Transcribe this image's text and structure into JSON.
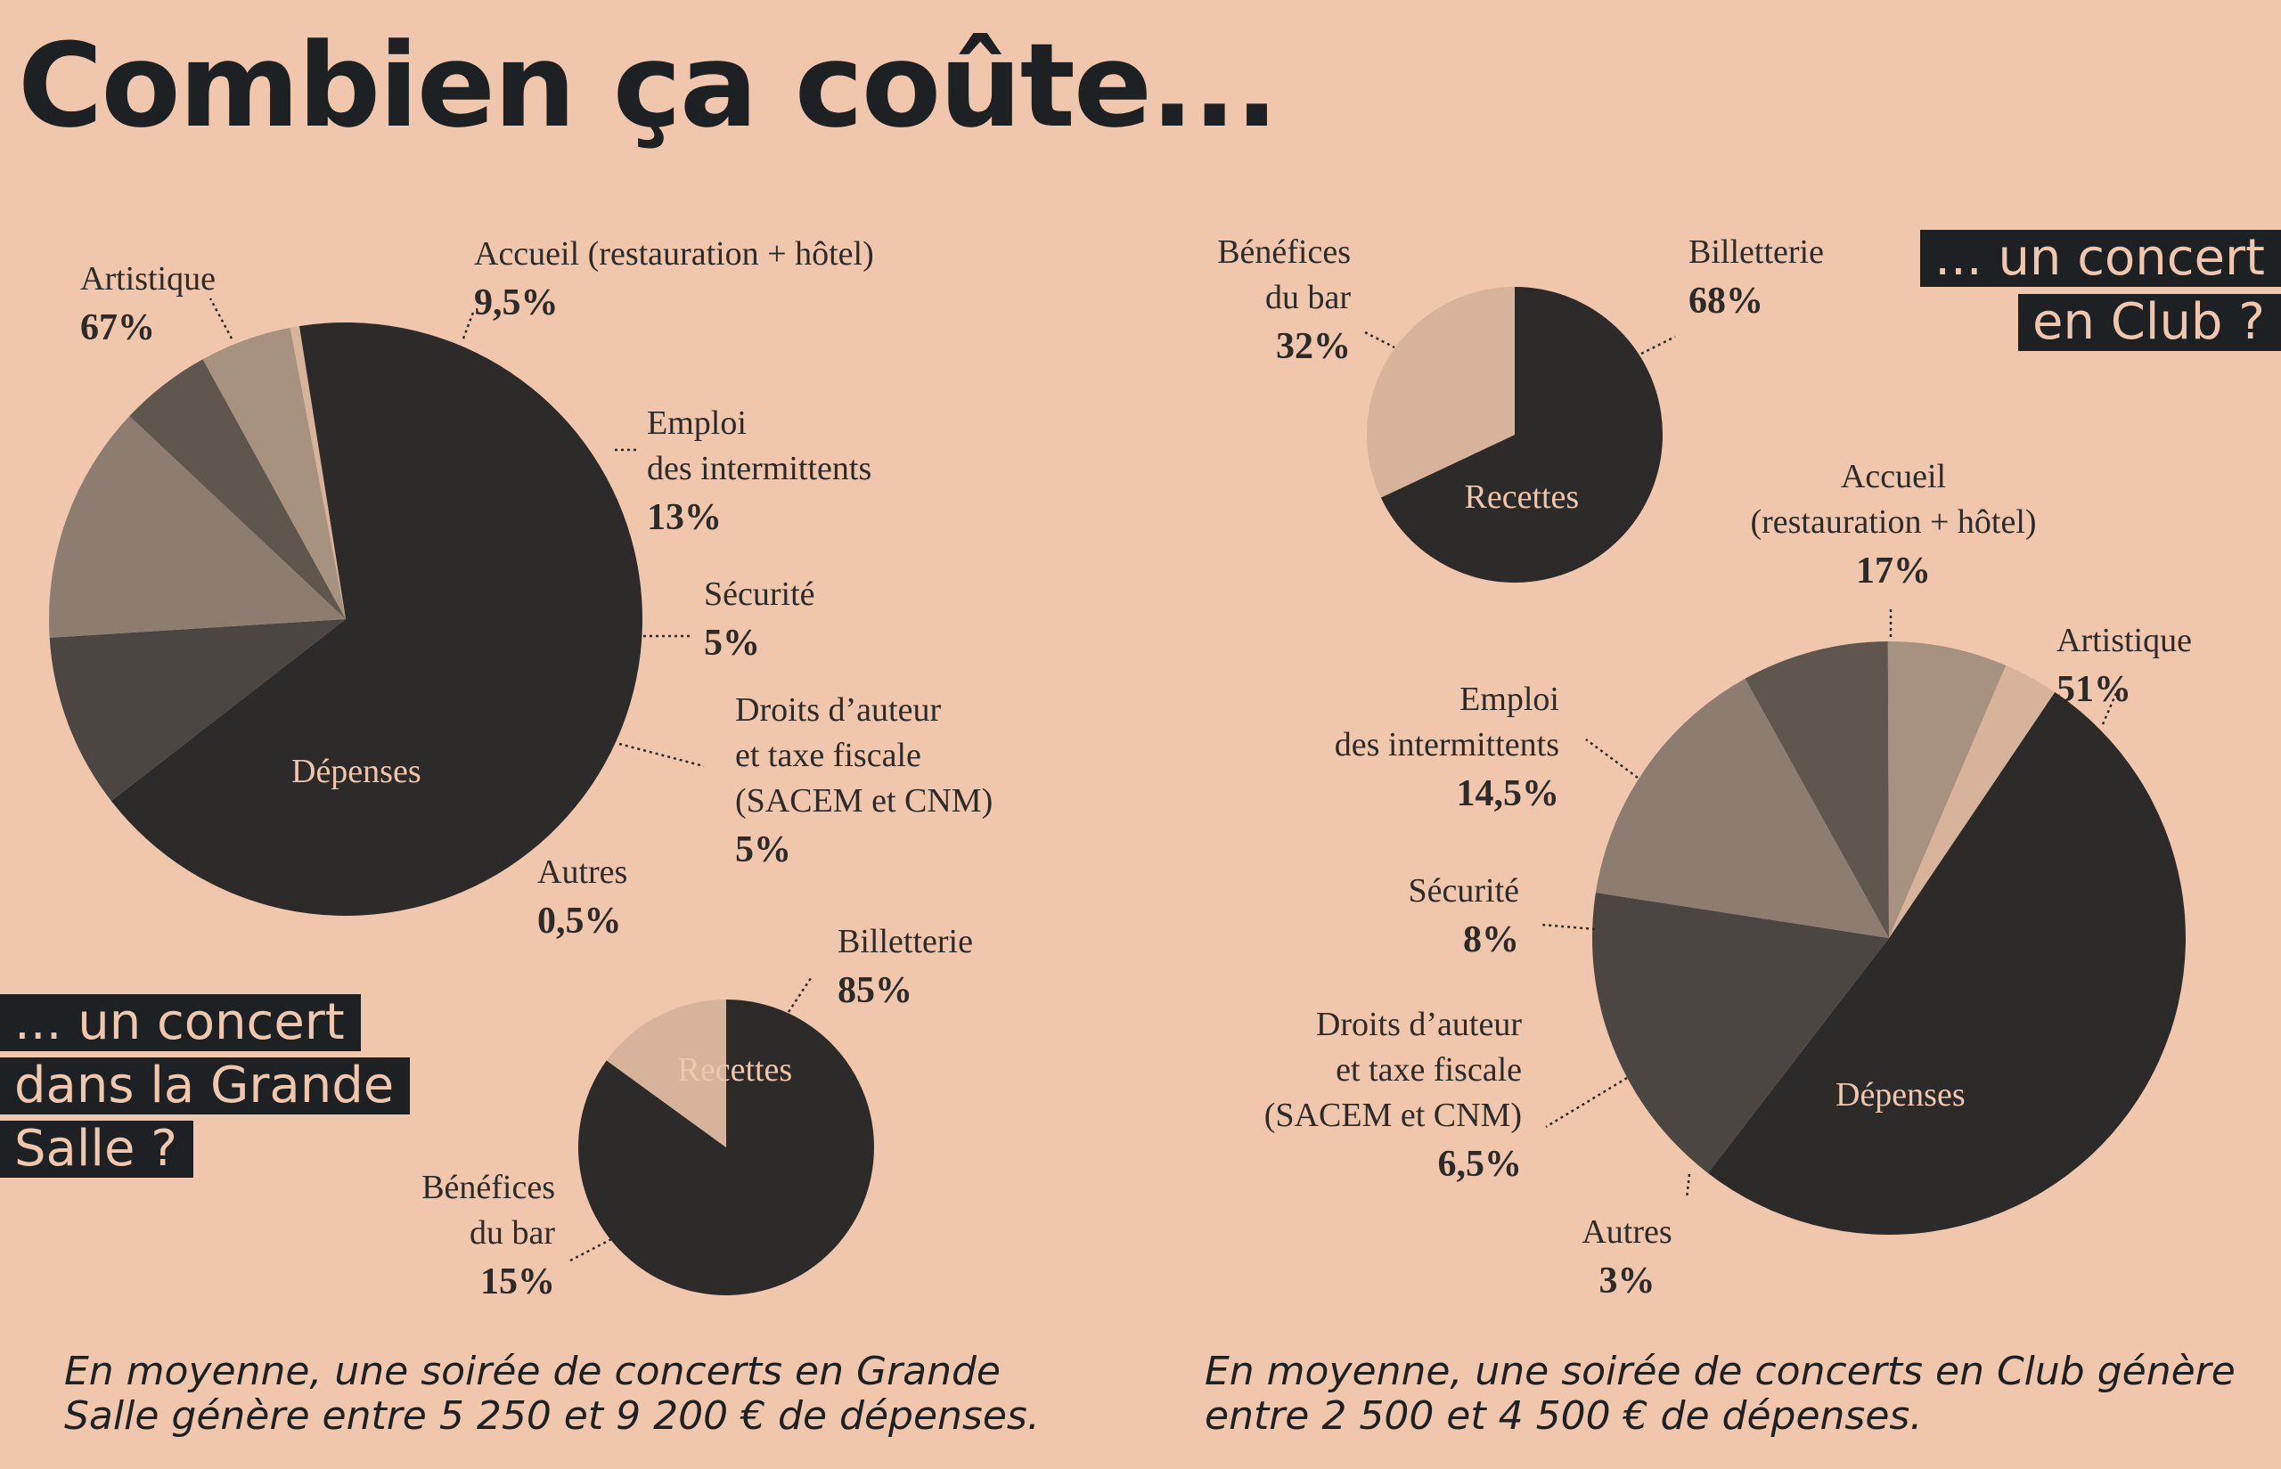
{
  "title": "Combien ça coûte...",
  "tags": {
    "grande_salle": [
      "... un concert",
      "dans la Grande",
      "Salle ?"
    ],
    "club": [
      "... un concert",
      "en Club ?"
    ]
  },
  "footnotes": {
    "grande_salle": [
      "En moyenne, une soirée de concerts en Grande",
      "Salle génère entre 5 250 et 9 200 € de dépenses."
    ],
    "club": [
      "En moyenne, une soirée de concerts en Club génère",
      "entre 2 500 et 4 500 € de dépenses."
    ]
  },
  "colors": {
    "background": "#f0c7ac",
    "dark": "#2d2b2a",
    "tag_bg": "#1d2124"
  },
  "chart_data": [
    {
      "type": "pie",
      "title": "Dépenses",
      "context": "Grande Salle",
      "slices": [
        {
          "label": [
            "Artistique"
          ],
          "value": 67,
          "value_label": "67%",
          "color": "#2d2b2a"
        },
        {
          "label": [
            "Accueil (restauration + hôtel)"
          ],
          "value": 9.5,
          "value_label": "9,5%",
          "color": "#4b4641"
        },
        {
          "label": [
            "Emploi",
            "des intermittents"
          ],
          "value": 13,
          "value_label": "13%",
          "color": "#8c7d70"
        },
        {
          "label": [
            "Sécurité"
          ],
          "value": 5,
          "value_label": "5%",
          "color": "#5f564e"
        },
        {
          "label": [
            "Droits d’auteur",
            "et taxe fiscale",
            "(SACEM et CNM)"
          ],
          "value": 5,
          "value_label": "5%",
          "color": "#a6927f"
        },
        {
          "label": [
            "Autres"
          ],
          "value": 0.5,
          "value_label": "0,5%",
          "color": "#d6b39a"
        }
      ]
    },
    {
      "type": "pie",
      "title": "Recettes",
      "context": "Grande Salle",
      "slices": [
        {
          "label": [
            "Billetterie"
          ],
          "value": 85,
          "value_label": "85%",
          "color": "#2d2b2a"
        },
        {
          "label": [
            "Bénéfices",
            "du bar"
          ],
          "value": 15,
          "value_label": "15%",
          "color": "#d6b39a"
        }
      ]
    },
    {
      "type": "pie",
      "title": "Recettes",
      "context": "Club",
      "slices": [
        {
          "label": [
            "Billetterie"
          ],
          "value": 68,
          "value_label": "68%",
          "color": "#2d2b2a"
        },
        {
          "label": [
            "Bénéfices",
            "du bar"
          ],
          "value": 32,
          "value_label": "32%",
          "color": "#d6b39a"
        }
      ]
    },
    {
      "type": "pie",
      "title": "Dépenses",
      "context": "Club",
      "slices": [
        {
          "label": [
            "Artistique"
          ],
          "value": 51,
          "value_label": "51%",
          "color": "#2d2b2a"
        },
        {
          "label": [
            "Accueil",
            "(restauration + hôtel)"
          ],
          "value": 17,
          "value_label": "17%",
          "color": "#4b4641"
        },
        {
          "label": [
            "Emploi",
            "des intermittents"
          ],
          "value": 14.5,
          "value_label": "14,5%",
          "color": "#8c7d70"
        },
        {
          "label": [
            "Sécurité"
          ],
          "value": 8,
          "value_label": "8%",
          "color": "#5f564e"
        },
        {
          "label": [
            "Droits d’auteur",
            "et taxe fiscale",
            "(SACEM et CNM)"
          ],
          "value": 6.5,
          "value_label": "6,5%",
          "color": "#a6927f"
        },
        {
          "label": [
            "Autres"
          ],
          "value": 3,
          "value_label": "3%",
          "color": "#d6b39a"
        }
      ]
    }
  ]
}
